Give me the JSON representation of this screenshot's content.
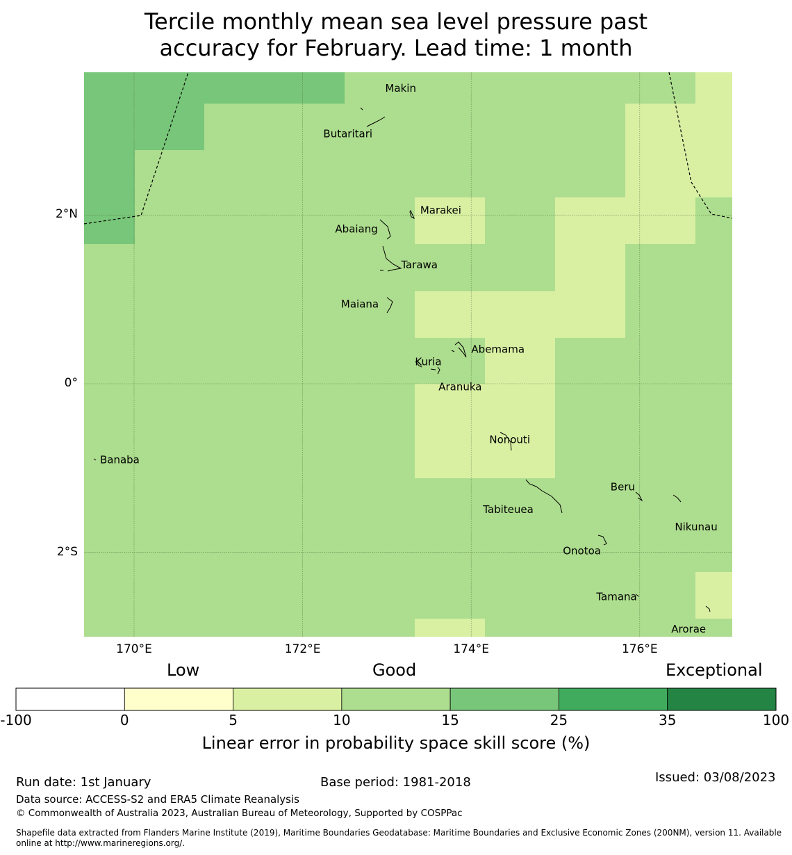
{
  "title": {
    "line1": "Tercile monthly mean sea level pressure past",
    "line2": "accuracy for February. Lead time: 1 month"
  },
  "map": {
    "lon_range": [
      169.4,
      177.1
    ],
    "lat_range": [
      -3.0,
      3.7
    ],
    "lat_ticks": [
      {
        "value": 2,
        "label": "2°N"
      },
      {
        "value": 0,
        "label": "0°"
      },
      {
        "value": -2,
        "label": "2°S"
      }
    ],
    "lon_ticks": [
      {
        "value": 170,
        "label": "170°E"
      },
      {
        "value": 172,
        "label": "172°E"
      },
      {
        "value": 174,
        "label": "174°E"
      },
      {
        "value": 176,
        "label": "176°E"
      }
    ],
    "places": [
      {
        "name": "Makin",
        "lon": 172.98,
        "lat": 3.38
      },
      {
        "name": "Butaritari",
        "lon": 172.79,
        "lat": 3.07
      },
      {
        "name": "Marakei",
        "lon": 173.28,
        "lat": 2.0
      },
      {
        "name": "Abaiang",
        "lon": 172.93,
        "lat": 1.85
      },
      {
        "name": "Tarawa",
        "lon": 173.02,
        "lat": 1.42
      },
      {
        "name": "Maiana",
        "lon": 173.0,
        "lat": 0.97
      },
      {
        "name": "Abemama",
        "lon": 173.87,
        "lat": 0.4
      },
      {
        "name": "Kuria",
        "lon": 173.4,
        "lat": 0.22
      },
      {
        "name": "Aranuka",
        "lon": 173.58,
        "lat": 0.17
      },
      {
        "name": "Nonouti",
        "lon": 174.43,
        "lat": -0.64
      },
      {
        "name": "Banaba",
        "lon": 169.53,
        "lat": -0.87
      },
      {
        "name": "Tabiteuea",
        "lon": 174.8,
        "lat": -1.35
      },
      {
        "name": "Beru",
        "lon": 176.0,
        "lat": -1.33
      },
      {
        "name": "Nikunau",
        "lon": 176.45,
        "lat": -1.35
      },
      {
        "name": "Onotoa",
        "lon": 175.55,
        "lat": -1.8
      },
      {
        "name": "Tamana",
        "lon": 175.98,
        "lat": -2.5
      },
      {
        "name": "Arorae",
        "lon": 176.82,
        "lat": -2.64
      }
    ]
  },
  "legend": {
    "categories": [
      "Low",
      "Good",
      "Exceptional"
    ],
    "bins": [
      {
        "from": "-100",
        "to": "0",
        "color": "#ffffff"
      },
      {
        "from": "0",
        "to": "5",
        "color": "#ffffcc"
      },
      {
        "from": "5",
        "to": "10",
        "color": "#d9f0a3"
      },
      {
        "from": "10",
        "to": "15",
        "color": "#addd8e"
      },
      {
        "from": "15",
        "to": "25",
        "color": "#78c679"
      },
      {
        "from": "25",
        "to": "35",
        "color": "#41ab5d"
      },
      {
        "from": "35",
        "to": "100",
        "color": "#238443"
      }
    ],
    "tick_labels": [
      "-100",
      "0",
      "5",
      "10",
      "15",
      "25",
      "35",
      "100"
    ],
    "title": "Linear error in probability space skill score (%)"
  },
  "footer": {
    "run_date": "Run date: 1st January",
    "base_period": "Base period: 1981-2018",
    "issued": "Issued: 03/08/2023",
    "data_source": "Data source: ACCESS-S2 and ERA5 Climate Reanalysis",
    "copyright": "© Commonwealth of Australia 2023, Australian Bureau of Meteorology, Supported by COSPPac",
    "shapefile_line1": "Shapefile data extracted from Flanders Marine Institute (2019), Maritime Boundaries Geodatabase: Maritime Boundaries and Exclusive Economic Zones (200NM), version 11. Available",
    "shapefile_line2": "online at http://www.marineregions.org/."
  }
}
